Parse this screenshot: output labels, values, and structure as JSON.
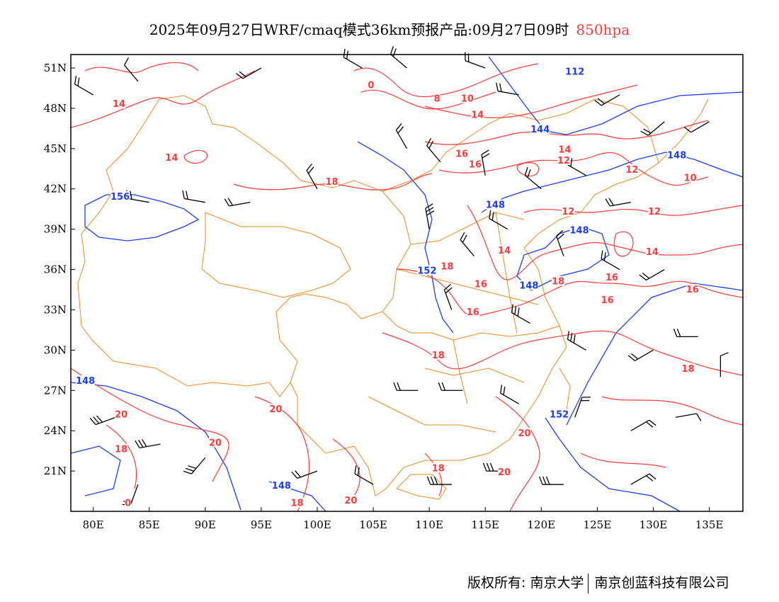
{
  "title": {
    "main": "2025年09月27日WRF/cmaq模式36km预报产品:09月27日09时",
    "level": "850hpa",
    "level_color": "#ff3b3b"
  },
  "map": {
    "lon_range": [
      78,
      138
    ],
    "lat_range": [
      18,
      52
    ],
    "lon_ticks": [
      {
        "v": 80,
        "label": "80E"
      },
      {
        "v": 85,
        "label": "85E"
      },
      {
        "v": 90,
        "label": "90E"
      },
      {
        "v": 95,
        "label": "95E"
      },
      {
        "v": 100,
        "label": "100E"
      },
      {
        "v": 105,
        "label": "105E"
      },
      {
        "v": 110,
        "label": "110E"
      },
      {
        "v": 115,
        "label": "115E"
      },
      {
        "v": 120,
        "label": "120E"
      },
      {
        "v": 125,
        "label": "125E"
      },
      {
        "v": 130,
        "label": "130E"
      },
      {
        "v": 135,
        "label": "135E"
      }
    ],
    "lat_ticks": [
      {
        "v": 21,
        "label": "21N"
      },
      {
        "v": 24,
        "label": "24N"
      },
      {
        "v": 27,
        "label": "27N"
      },
      {
        "v": 30,
        "label": "30N"
      },
      {
        "v": 33,
        "label": "33N"
      },
      {
        "v": 36,
        "label": "36N"
      },
      {
        "v": 39,
        "label": "39N"
      },
      {
        "v": 42,
        "label": "42N"
      },
      {
        "v": 45,
        "label": "45N"
      },
      {
        "v": 48,
        "label": "48N"
      },
      {
        "v": 51,
        "label": "51N"
      }
    ],
    "colors": {
      "temperature": "#ff3b3b",
      "height": "#1a3cff",
      "border": "#f08a1e",
      "wind": "#000000"
    },
    "temperature_labels": [
      {
        "t": "0",
        "lon": 104.8,
        "lat": 49.7
      },
      {
        "t": "8",
        "lon": 110.7,
        "lat": 48.7
      },
      {
        "t": "10",
        "lon": 113.4,
        "lat": 48.7
      },
      {
        "t": "14",
        "lon": 114.3,
        "lat": 47.5
      },
      {
        "t": "14",
        "lon": 82.3,
        "lat": 48.3
      },
      {
        "t": "14",
        "lon": 87.0,
        "lat": 44.3
      },
      {
        "t": "16",
        "lon": 112.9,
        "lat": 44.6
      },
      {
        "t": "16",
        "lon": 114.1,
        "lat": 43.8
      },
      {
        "t": "18",
        "lon": 101.3,
        "lat": 42.5
      },
      {
        "t": "14",
        "lon": 122.1,
        "lat": 44.9
      },
      {
        "t": "12",
        "lon": 122.0,
        "lat": 44.1
      },
      {
        "t": "12",
        "lon": 128.1,
        "lat": 43.4
      },
      {
        "t": "10",
        "lon": 133.3,
        "lat": 42.8
      },
      {
        "t": "12",
        "lon": 122.4,
        "lat": 40.3
      },
      {
        "t": "12",
        "lon": 130.1,
        "lat": 40.3
      },
      {
        "t": "14",
        "lon": 116.7,
        "lat": 37.4
      },
      {
        "t": "14",
        "lon": 129.9,
        "lat": 37.3
      },
      {
        "t": "18",
        "lon": 111.6,
        "lat": 36.2
      },
      {
        "t": "16",
        "lon": 114.6,
        "lat": 34.9
      },
      {
        "t": "18",
        "lon": 121.5,
        "lat": 35.1
      },
      {
        "t": "16",
        "lon": 126.3,
        "lat": 35.4
      },
      {
        "t": "16",
        "lon": 133.5,
        "lat": 34.5
      },
      {
        "t": "16",
        "lon": 113.9,
        "lat": 32.8
      },
      {
        "t": "16",
        "lon": 125.9,
        "lat": 33.7
      },
      {
        "t": "18",
        "lon": 110.8,
        "lat": 29.6
      },
      {
        "t": "18",
        "lon": 133.1,
        "lat": 28.6
      },
      {
        "t": "20",
        "lon": 96.3,
        "lat": 25.6
      },
      {
        "t": "20",
        "lon": 82.5,
        "lat": 25.2
      },
      {
        "t": "18",
        "lon": 82.5,
        "lat": 22.6
      },
      {
        "t": "20",
        "lon": 90.9,
        "lat": 23.1
      },
      {
        "t": "20",
        "lon": 118.5,
        "lat": 23.8
      },
      {
        "t": "18",
        "lon": 110.8,
        "lat": 21.2
      },
      {
        "t": "20",
        "lon": 116.7,
        "lat": 20.9
      },
      {
        "t": "18",
        "lon": 98.2,
        "lat": 18.6
      },
      {
        "t": "20",
        "lon": 103.0,
        "lat": 18.8
      },
      {
        "t": "0",
        "lon": 83.1,
        "lat": 18.6
      }
    ],
    "height_labels": [
      {
        "t": "112",
        "lon": 123.0,
        "lat": 50.7
      },
      {
        "t": "144",
        "lon": 119.9,
        "lat": 46.4
      },
      {
        "t": "148",
        "lon": 132.1,
        "lat": 44.5
      },
      {
        "t": "156",
        "lon": 82.4,
        "lat": 41.4
      },
      {
        "t": "148",
        "lon": 115.9,
        "lat": 40.8
      },
      {
        "t": "148",
        "lon": 123.4,
        "lat": 38.9
      },
      {
        "t": "152",
        "lon": 109.8,
        "lat": 35.9
      },
      {
        "t": "148",
        "lon": 118.9,
        "lat": 34.8
      },
      {
        "t": "148",
        "lon": 79.3,
        "lat": 27.7
      },
      {
        "t": "152",
        "lon": 121.6,
        "lat": 25.2
      },
      {
        "t": "148",
        "lon": 96.8,
        "lat": 19.9
      }
    ],
    "wind_barbs": [
      {
        "lon": 80,
        "lat": 49,
        "dir": 300,
        "kt": 20
      },
      {
        "lon": 84,
        "lat": 50,
        "dir": 320,
        "kt": 10
      },
      {
        "lon": 95,
        "lat": 51,
        "dir": 240,
        "kt": 20
      },
      {
        "lon": 104,
        "lat": 51,
        "dir": 300,
        "kt": 20
      },
      {
        "lon": 108,
        "lat": 51,
        "dir": 310,
        "kt": 20
      },
      {
        "lon": 115,
        "lat": 51,
        "dir": 290,
        "kt": 20
      },
      {
        "lon": 118,
        "lat": 49,
        "dir": 280,
        "kt": 20
      },
      {
        "lon": 127,
        "lat": 49,
        "dir": 240,
        "kt": 20
      },
      {
        "lon": 131,
        "lat": 47,
        "dir": 230,
        "kt": 20
      },
      {
        "lon": 135,
        "lat": 47,
        "dir": 240,
        "kt": 10
      },
      {
        "lon": 108,
        "lat": 45,
        "dir": 330,
        "kt": 20
      },
      {
        "lon": 111,
        "lat": 44,
        "dir": 320,
        "kt": 20
      },
      {
        "lon": 115,
        "lat": 43,
        "dir": 350,
        "kt": 20
      },
      {
        "lon": 120,
        "lat": 42,
        "dir": 310,
        "kt": 20
      },
      {
        "lon": 124,
        "lat": 43,
        "dir": 300,
        "kt": 20
      },
      {
        "lon": 128,
        "lat": 41,
        "dir": 260,
        "kt": 20
      },
      {
        "lon": 85,
        "lat": 41,
        "dir": 280,
        "kt": 20
      },
      {
        "lon": 90,
        "lat": 41,
        "dir": 280,
        "kt": 20
      },
      {
        "lon": 94,
        "lat": 41,
        "dir": 260,
        "kt": 20
      },
      {
        "lon": 100,
        "lat": 42,
        "dir": 330,
        "kt": 20
      },
      {
        "lon": 110,
        "lat": 39,
        "dir": 350,
        "kt": 30
      },
      {
        "lon": 114,
        "lat": 37,
        "dir": 320,
        "kt": 20
      },
      {
        "lon": 117,
        "lat": 39,
        "dir": 300,
        "kt": 20
      },
      {
        "lon": 122,
        "lat": 37,
        "dir": 340,
        "kt": 20
      },
      {
        "lon": 127,
        "lat": 36,
        "dir": 300,
        "kt": 20
      },
      {
        "lon": 131,
        "lat": 36,
        "dir": 240,
        "kt": 20
      },
      {
        "lon": 112,
        "lat": 33,
        "dir": 340,
        "kt": 20
      },
      {
        "lon": 119,
        "lat": 32,
        "dir": 300,
        "kt": 30
      },
      {
        "lon": 124,
        "lat": 30,
        "dir": 300,
        "kt": 30
      },
      {
        "lon": 130,
        "lat": 30,
        "dir": 240,
        "kt": 20
      },
      {
        "lon": 134,
        "lat": 31,
        "dir": 270,
        "kt": 20
      },
      {
        "lon": 109,
        "lat": 27,
        "dir": 270,
        "kt": 20
      },
      {
        "lon": 113,
        "lat": 27,
        "dir": 270,
        "kt": 20
      },
      {
        "lon": 118,
        "lat": 26,
        "dir": 300,
        "kt": 20
      },
      {
        "lon": 123,
        "lat": 25,
        "dir": 20,
        "kt": 20
      },
      {
        "lon": 128,
        "lat": 24,
        "dir": 60,
        "kt": 20
      },
      {
        "lon": 132,
        "lat": 25,
        "dir": 80,
        "kt": 10
      },
      {
        "lon": 136,
        "lat": 28,
        "dir": 0,
        "kt": 10
      },
      {
        "lon": 82,
        "lat": 25,
        "dir": 250,
        "kt": 30
      },
      {
        "lon": 86,
        "lat": 23,
        "dir": 260,
        "kt": 30
      },
      {
        "lon": 90,
        "lat": 22,
        "dir": 220,
        "kt": 30
      },
      {
        "lon": 84,
        "lat": 20,
        "dir": 200,
        "kt": 20
      },
      {
        "lon": 100,
        "lat": 21,
        "dir": 250,
        "kt": 20
      },
      {
        "lon": 105,
        "lat": 20,
        "dir": 300,
        "kt": 20
      },
      {
        "lon": 112,
        "lat": 20,
        "dir": 270,
        "kt": 30
      },
      {
        "lon": 117,
        "lat": 21,
        "dir": 270,
        "kt": 30
      },
      {
        "lon": 122,
        "lat": 20,
        "dir": 270,
        "kt": 30
      },
      {
        "lon": 128,
        "lat": 20,
        "dir": 60,
        "kt": 20
      }
    ]
  },
  "footer": {
    "owner": "版权所有: 南京大学",
    "company": "南京创蓝科技有限公司"
  }
}
